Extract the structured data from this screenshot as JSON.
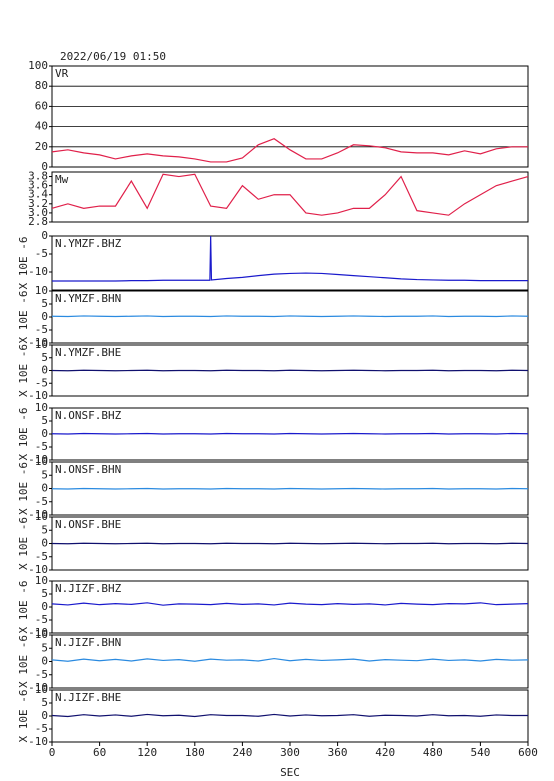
{
  "chart_data": [
    {
      "type": "line",
      "title": "2022/06/19 01:50",
      "xlim": [
        0,
        600
      ],
      "ylim": [
        0,
        100
      ],
      "yticks": [
        0,
        20,
        40,
        60,
        80,
        100
      ],
      "grid": true,
      "x": [
        0,
        20,
        40,
        60,
        80,
        100,
        120,
        140,
        160,
        180,
        200,
        220,
        240,
        260,
        280,
        300,
        320,
        340,
        360,
        380,
        400,
        420,
        440,
        460,
        480,
        500,
        520,
        540,
        560,
        580,
        600
      ],
      "series": [
        {
          "name": "VR",
          "color": "#e0204a",
          "values": [
            15,
            17,
            14,
            12,
            8,
            11,
            13,
            11,
            10,
            8,
            5,
            5,
            9,
            22,
            28,
            17,
            8,
            8,
            14,
            22,
            21,
            19,
            15,
            14,
            14,
            12,
            16,
            13,
            18,
            20,
            20
          ]
        }
      ]
    },
    {
      "type": "line",
      "xlim": [
        0,
        600
      ],
      "ylim": [
        2.8,
        3.9
      ],
      "yticks": [
        2.8,
        {
          "value": 3,
          "label": "3.0"
        },
        3.2,
        3.4,
        3.6,
        3.8
      ],
      "grid": false,
      "x": [
        0,
        20,
        40,
        60,
        80,
        100,
        120,
        140,
        160,
        180,
        200,
        220,
        240,
        260,
        280,
        300,
        320,
        340,
        360,
        380,
        400,
        420,
        440,
        460,
        480,
        500,
        520,
        540,
        560,
        580,
        600
      ],
      "series": [
        {
          "name": "Mw",
          "color": "#e0204a",
          "values": [
            3.1,
            3.2,
            3.1,
            3.15,
            3.15,
            3.7,
            3.1,
            3.85,
            3.8,
            3.85,
            3.15,
            3.1,
            3.6,
            3.3,
            3.4,
            3.4,
            3.0,
            2.95,
            3.0,
            3.1,
            3.1,
            3.4,
            3.8,
            3.05,
            3.0,
            2.95,
            3.2,
            3.4,
            3.6,
            3.7,
            3.8
          ]
        }
      ]
    },
    {
      "type": "line",
      "xlim": [
        0,
        600
      ],
      "ylim": [
        -15,
        0
      ],
      "yticks": [
        -10,
        -5,
        0
      ],
      "ylabel": "X 10E -6",
      "grid": false,
      "x": [
        0,
        20,
        40,
        60,
        80,
        100,
        120,
        140,
        160,
        180,
        199,
        200,
        201,
        220,
        240,
        260,
        280,
        300,
        320,
        340,
        360,
        380,
        400,
        420,
        440,
        460,
        480,
        500,
        520,
        540,
        560,
        580,
        600
      ],
      "series": [
        {
          "name": "N.YMZF.BHZ",
          "color": "#1a1acc",
          "values": [
            -12.5,
            -12.5,
            -12.5,
            -12.5,
            -12.5,
            -12.4,
            -12.4,
            -12.3,
            -12.3,
            -12.3,
            -12.3,
            0,
            -12.2,
            -11.8,
            -11.5,
            -11,
            -10.6,
            -10.4,
            -10.3,
            -10.4,
            -10.7,
            -11,
            -11.3,
            -11.6,
            -11.9,
            -12.1,
            -12.2,
            -12.3,
            -12.3,
            -12.4,
            -12.4,
            -12.4,
            -12.4
          ]
        }
      ]
    },
    {
      "type": "line",
      "xlim": [
        0,
        600
      ],
      "ylim": [
        -10,
        10
      ],
      "yticks": [
        -10,
        -5,
        0,
        5,
        10
      ],
      "ylabel": "X 10E -6",
      "grid": false,
      "x": [
        0,
        20,
        40,
        60,
        80,
        100,
        120,
        140,
        160,
        180,
        200,
        220,
        240,
        260,
        280,
        300,
        320,
        340,
        360,
        380,
        400,
        420,
        440,
        460,
        480,
        500,
        520,
        540,
        560,
        580,
        600
      ],
      "series": [
        {
          "name": "N.YMZF.BHN",
          "color": "#2a8ae0",
          "values": [
            0.3,
            0.2,
            0.4,
            0.3,
            0.2,
            0.3,
            0.4,
            0.2,
            0.3,
            0.3,
            0.2,
            0.4,
            0.3,
            0.3,
            0.2,
            0.4,
            0.3,
            0.2,
            0.3,
            0.4,
            0.3,
            0.2,
            0.3,
            0.3,
            0.4,
            0.2,
            0.3,
            0.3,
            0.2,
            0.4,
            0.3
          ]
        }
      ]
    },
    {
      "type": "line",
      "xlim": [
        0,
        600
      ],
      "ylim": [
        -10,
        10
      ],
      "yticks": [
        -10,
        -5,
        0,
        5,
        10
      ],
      "ylabel": "X 10E -6",
      "grid": false,
      "x": [
        0,
        20,
        40,
        60,
        80,
        100,
        120,
        140,
        160,
        180,
        200,
        220,
        240,
        260,
        280,
        300,
        320,
        340,
        360,
        380,
        400,
        420,
        440,
        460,
        480,
        500,
        520,
        540,
        560,
        580,
        600
      ],
      "series": [
        {
          "name": "N.YMZF.BHE",
          "color": "#10106e",
          "values": [
            0,
            -0.1,
            0.1,
            0,
            -0.1,
            0,
            0.1,
            -0.1,
            0,
            0,
            -0.1,
            0.1,
            0,
            0,
            -0.1,
            0.1,
            0,
            -0.1,
            0,
            0.1,
            0,
            -0.1,
            0,
            0,
            0.1,
            -0.1,
            0,
            0,
            -0.1,
            0.1,
            0
          ]
        }
      ]
    },
    {
      "type": "line",
      "xlim": [
        0,
        600
      ],
      "ylim": [
        -10,
        10
      ],
      "yticks": [
        -10,
        -5,
        0,
        5,
        10
      ],
      "ylabel": "X 10E -6",
      "grid": false,
      "x": [
        0,
        20,
        40,
        60,
        80,
        100,
        120,
        140,
        160,
        180,
        200,
        220,
        240,
        260,
        280,
        300,
        320,
        340,
        360,
        380,
        400,
        420,
        440,
        460,
        480,
        500,
        520,
        540,
        560,
        580,
        600
      ],
      "series": [
        {
          "name": "N.ONSF.BHZ",
          "color": "#1a1acc",
          "values": [
            0.1,
            0,
            0.2,
            0.1,
            0,
            0.1,
            0.2,
            0,
            0.1,
            0.1,
            0,
            0.2,
            0.1,
            0.1,
            0,
            0.2,
            0.1,
            0,
            0.1,
            0.2,
            0.1,
            0,
            0.1,
            0.1,
            0.2,
            0,
            0.1,
            0.1,
            0,
            0.2,
            0.1
          ]
        }
      ]
    },
    {
      "type": "line",
      "xlim": [
        0,
        600
      ],
      "ylim": [
        -10,
        10
      ],
      "yticks": [
        -10,
        -5,
        0,
        5,
        10
      ],
      "ylabel": "X 10E -6",
      "grid": false,
      "x": [
        0,
        20,
        40,
        60,
        80,
        100,
        120,
        140,
        160,
        180,
        200,
        220,
        240,
        260,
        280,
        300,
        320,
        340,
        360,
        380,
        400,
        420,
        440,
        460,
        480,
        500,
        520,
        540,
        560,
        580,
        600
      ],
      "series": [
        {
          "name": "N.ONSF.BHN",
          "color": "#2a8ae0",
          "values": [
            -0.1,
            -0.2,
            0,
            -0.1,
            -0.2,
            -0.1,
            0,
            -0.2,
            -0.1,
            -0.1,
            -0.2,
            0,
            -0.1,
            -0.1,
            -0.2,
            0,
            -0.1,
            -0.2,
            -0.1,
            0,
            -0.1,
            -0.2,
            -0.1,
            -0.1,
            0,
            -0.2,
            -0.1,
            -0.1,
            -0.2,
            0,
            -0.1
          ]
        }
      ]
    },
    {
      "type": "line",
      "xlim": [
        0,
        600
      ],
      "ylim": [
        -10,
        10
      ],
      "yticks": [
        -10,
        -5,
        0,
        5,
        10
      ],
      "ylabel": "X 10E -6",
      "grid": false,
      "x": [
        0,
        20,
        40,
        60,
        80,
        100,
        120,
        140,
        160,
        180,
        200,
        220,
        240,
        260,
        280,
        300,
        320,
        340,
        360,
        380,
        400,
        420,
        440,
        460,
        480,
        500,
        520,
        540,
        560,
        580,
        600
      ],
      "series": [
        {
          "name": "N.ONSF.BHE",
          "color": "#10106e",
          "values": [
            0,
            -0.1,
            0.1,
            0,
            -0.1,
            0,
            0.1,
            -0.1,
            0,
            0,
            -0.1,
            0.1,
            0,
            0,
            -0.1,
            0.1,
            0,
            -0.1,
            0,
            0.1,
            0,
            -0.1,
            0,
            0,
            0.1,
            -0.1,
            0,
            0,
            -0.1,
            0.1,
            0
          ]
        }
      ]
    },
    {
      "type": "line",
      "xlim": [
        0,
        600
      ],
      "ylim": [
        -10,
        10
      ],
      "yticks": [
        -10,
        -5,
        0,
        5,
        10
      ],
      "ylabel": "X 10E -6",
      "grid": false,
      "x": [
        0,
        20,
        40,
        60,
        80,
        100,
        120,
        140,
        160,
        180,
        200,
        220,
        240,
        260,
        280,
        300,
        320,
        340,
        360,
        380,
        400,
        420,
        440,
        460,
        480,
        500,
        520,
        540,
        560,
        580,
        600
      ],
      "series": [
        {
          "name": "N.JIZF.BHZ",
          "color": "#1a1acc",
          "values": [
            1.2,
            0.8,
            1.5,
            0.9,
            1.3,
            1.0,
            1.6,
            0.7,
            1.2,
            1.1,
            0.9,
            1.4,
            1.0,
            1.2,
            0.8,
            1.5,
            1.1,
            0.9,
            1.3,
            1.0,
            1.2,
            0.8,
            1.4,
            1.1,
            0.9,
            1.3,
            1.2,
            1.6,
            0.9,
            1.1,
            1.3
          ]
        }
      ]
    },
    {
      "type": "line",
      "xlim": [
        0,
        600
      ],
      "ylim": [
        -10,
        10
      ],
      "yticks": [
        -10,
        -5,
        0,
        5,
        10
      ],
      "ylabel": "X 10E -6",
      "grid": false,
      "x": [
        0,
        20,
        40,
        60,
        80,
        100,
        120,
        140,
        160,
        180,
        200,
        220,
        240,
        260,
        280,
        300,
        320,
        340,
        360,
        380,
        400,
        420,
        440,
        460,
        480,
        500,
        520,
        540,
        560,
        580,
        600
      ],
      "series": [
        {
          "name": "N.JIZF.BHN",
          "color": "#2a8ae0",
          "values": [
            0.6,
            0.1,
            0.9,
            0.3,
            0.8,
            0.2,
            1.0,
            0.4,
            0.7,
            0.1,
            0.9,
            0.5,
            0.6,
            0.2,
            1.1,
            0.3,
            0.8,
            0.4,
            0.6,
            0.9,
            0.2,
            0.7,
            0.5,
            0.3,
            0.9,
            0.4,
            0.6,
            0.2,
            0.8,
            0.5,
            0.6
          ]
        }
      ]
    },
    {
      "type": "line",
      "xlim": [
        0,
        600
      ],
      "ylim": [
        -10,
        10
      ],
      "yticks": [
        -10,
        -5,
        0,
        5,
        10
      ],
      "ylabel": "X 10E -6",
      "grid": false,
      "xticks": [
        0,
        60,
        120,
        180,
        240,
        300,
        360,
        420,
        480,
        540,
        600
      ],
      "xlabel": "SEC",
      "x": [
        0,
        20,
        40,
        60,
        80,
        100,
        120,
        140,
        160,
        180,
        200,
        220,
        240,
        260,
        280,
        300,
        320,
        340,
        360,
        380,
        400,
        420,
        440,
        460,
        480,
        500,
        520,
        540,
        560,
        580,
        600
      ],
      "series": [
        {
          "name": "N.JIZF.BHE",
          "color": "#10106e",
          "values": [
            0.2,
            -0.2,
            0.5,
            0.0,
            0.4,
            -0.1,
            0.6,
            0.1,
            0.3,
            -0.2,
            0.5,
            0.2,
            0.2,
            -0.1,
            0.6,
            0.0,
            0.4,
            0.1,
            0.2,
            0.5,
            -0.1,
            0.3,
            0.2,
            0.0,
            0.5,
            0.1,
            0.2,
            -0.1,
            0.4,
            0.2,
            0.2
          ]
        }
      ]
    }
  ]
}
